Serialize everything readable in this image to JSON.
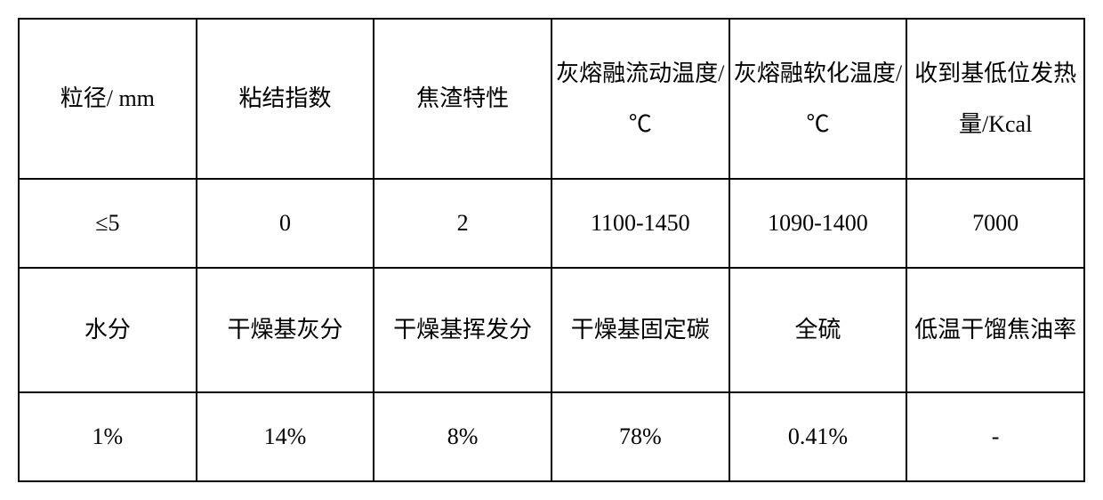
{
  "table": {
    "columns": 6,
    "border_color": "#000000",
    "background_color": "#ffffff",
    "text_color": "#000000",
    "font_size": 26,
    "row1_headers": [
      "粒径/ mm",
      "粘结指数",
      "焦渣特性",
      "灰熔融流动温度/℃",
      "灰熔融软化温度/℃",
      "收到基低位发热量/Kcal"
    ],
    "row1_values": [
      "≤5",
      "0",
      "2",
      "1100-1450",
      "1090-1400",
      "7000"
    ],
    "row2_headers": [
      "水分",
      "干燥基灰分",
      "干燥基挥发分",
      "干燥基固定碳",
      "全硫",
      "低温干馏焦油率"
    ],
    "row2_values": [
      "1%",
      "14%",
      "8%",
      "78%",
      "0.41%",
      "-"
    ]
  }
}
